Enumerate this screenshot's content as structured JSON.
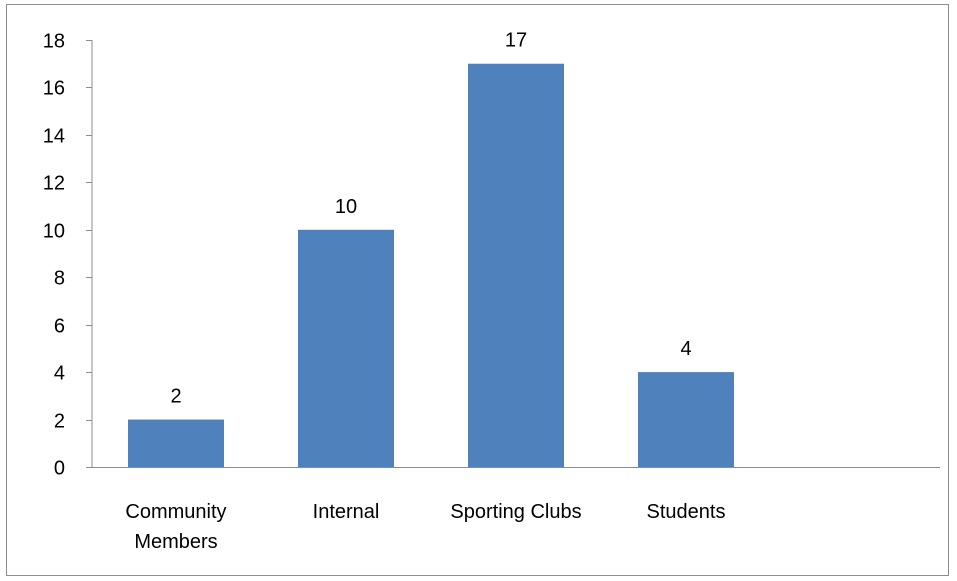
{
  "chart_data": {
    "type": "bar",
    "categories": [
      [
        "Community",
        "Members"
      ],
      [
        "Internal"
      ],
      [
        "Sporting Clubs"
      ],
      [
        "Students"
      ]
    ],
    "values": [
      2,
      10,
      17,
      4
    ],
    "data_labels": [
      "2",
      "10",
      "17",
      "4"
    ],
    "yticks": [
      "0",
      "2",
      "4",
      "6",
      "8",
      "10",
      "12",
      "14",
      "16",
      "18"
    ],
    "ylim": [
      0,
      18
    ],
    "grid": false,
    "legend": "none",
    "bar_color": "#4f81bd",
    "axis_color": "#8c8c8c"
  }
}
